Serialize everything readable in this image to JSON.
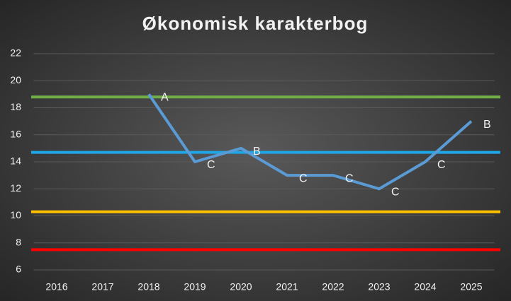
{
  "chart_data": {
    "type": "line",
    "title": "Økonomisk karakterbog",
    "categories": [
      "2016",
      "2017",
      "2018",
      "2019",
      "2020",
      "2021",
      "2022",
      "2023",
      "2024",
      "2025"
    ],
    "series": [
      {
        "color": "#5b9bd5",
        "values": [
          null,
          null,
          19,
          14,
          15,
          13,
          13,
          12,
          14,
          17
        ],
        "point_labels": [
          null,
          null,
          "A",
          "C",
          "B",
          "C",
          "C",
          "C",
          "C",
          "B"
        ]
      }
    ],
    "reference_lines": [
      {
        "value": 18.8,
        "color": "#70ad47"
      },
      {
        "value": 14.7,
        "color": "#1ea7e6"
      },
      {
        "value": 10.3,
        "color": "#ffc000"
      },
      {
        "value": 7.5,
        "color": "#ff0000"
      }
    ],
    "ylim": [
      6,
      22
    ],
    "yticks": [
      6,
      8,
      10,
      12,
      14,
      16,
      18,
      20,
      22
    ],
    "grid": true
  }
}
